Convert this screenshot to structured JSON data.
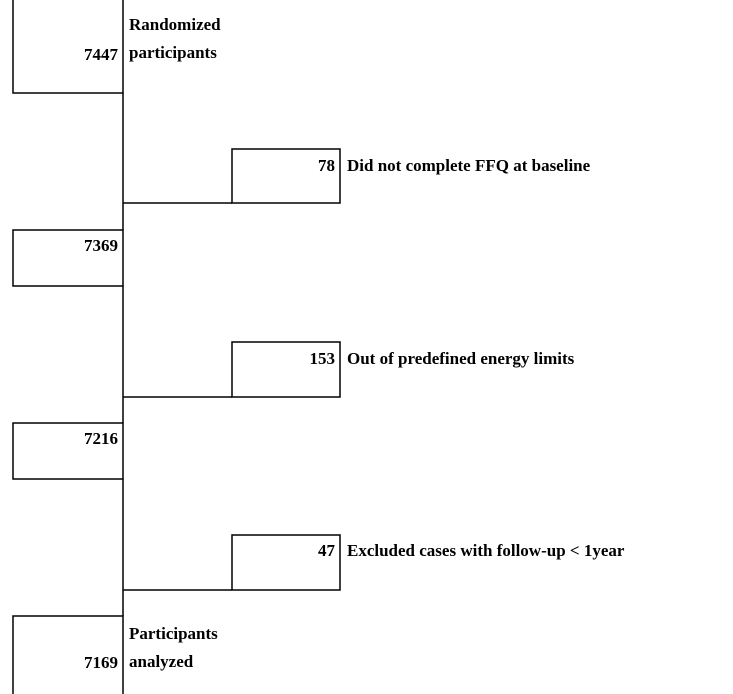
{
  "main_boxes": [
    {
      "value": "7447",
      "label": [
        "Randomized",
        "participants"
      ]
    },
    {
      "value": "7369"
    },
    {
      "value": "7216"
    },
    {
      "value": "7169",
      "label": [
        "Participants",
        "analyzed"
      ]
    }
  ],
  "exclusions": [
    {
      "value": "78",
      "label": "Did not complete FFQ at baseline"
    },
    {
      "value": "153",
      "label": "Out of predefined energy limits"
    },
    {
      "value": "47",
      "label": "Excluded cases with follow-up < 1year"
    }
  ]
}
